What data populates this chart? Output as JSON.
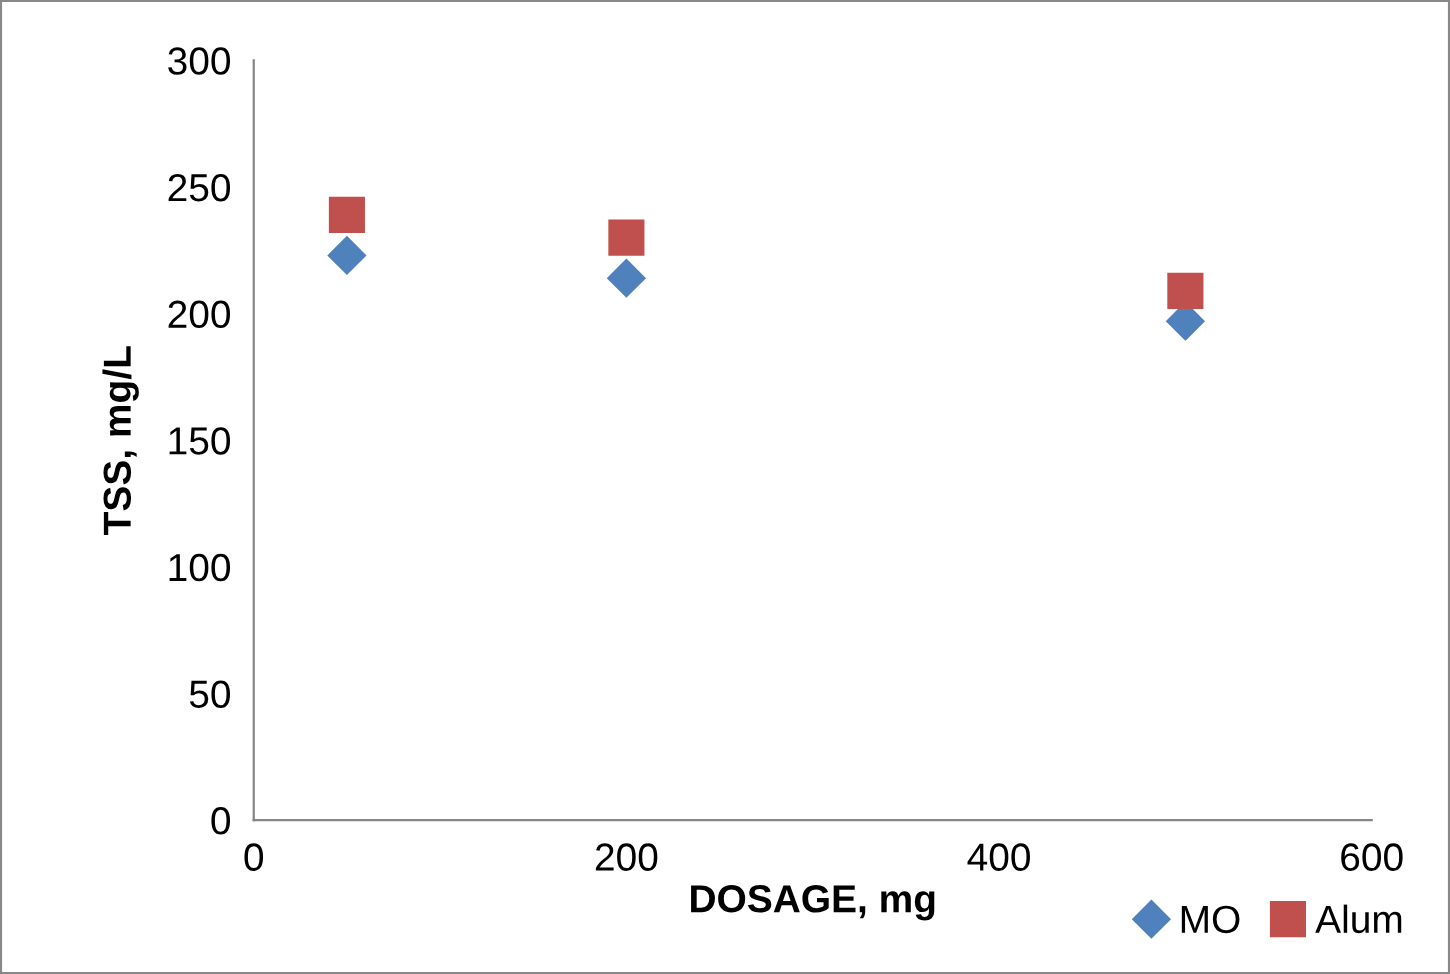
{
  "chart_data": {
    "type": "scatter",
    "xlabel": "DOSAGE, mg",
    "ylabel": "TSS, mg/L",
    "x": [
      50,
      200,
      500
    ],
    "series": [
      {
        "name": "MO",
        "color": "#4f81bd",
        "values": [
          223,
          214,
          197
        ],
        "marker": "diamond"
      },
      {
        "name": "Alum",
        "color": "#c0504d",
        "values": [
          239,
          230,
          209
        ],
        "marker": "square"
      }
    ],
    "xlim": [
      0,
      600
    ],
    "xticks": [
      0,
      200,
      400,
      600
    ],
    "ylim": [
      0,
      300
    ],
    "yticks": [
      0,
      50,
      100,
      150,
      200,
      250,
      300
    ],
    "grid": false,
    "legend": "bottom right"
  }
}
